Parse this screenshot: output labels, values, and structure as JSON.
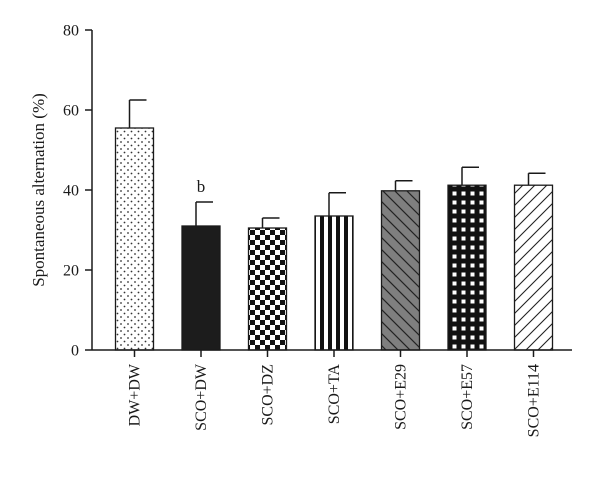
{
  "chart_data": {
    "type": "bar",
    "title": "",
    "xlabel": "",
    "ylabel": "Spontaneous alternation (%)",
    "ylim": [
      0,
      80
    ],
    "yticks": [
      0,
      20,
      40,
      60,
      80
    ],
    "grid": false,
    "legend": "none",
    "categories": [
      "DW+DW",
      "SCO+DW",
      "SCO+DZ",
      "SCO+TA",
      "SCO+E29",
      "SCO+E57",
      "SCO+E114"
    ],
    "values": [
      55.5,
      31,
      30.5,
      33.5,
      39.8,
      41.2,
      41.2
    ],
    "errors": [
      7,
      6,
      2.5,
      5.8,
      2.5,
      4.5,
      3
    ],
    "patterns": [
      "dots",
      "solid-black",
      "checker",
      "vertical-stripes",
      "diagonal-gray",
      "grid-black",
      "diagonal-white"
    ],
    "annotations": [
      {
        "category": "SCO+DW",
        "text": "b"
      }
    ]
  }
}
